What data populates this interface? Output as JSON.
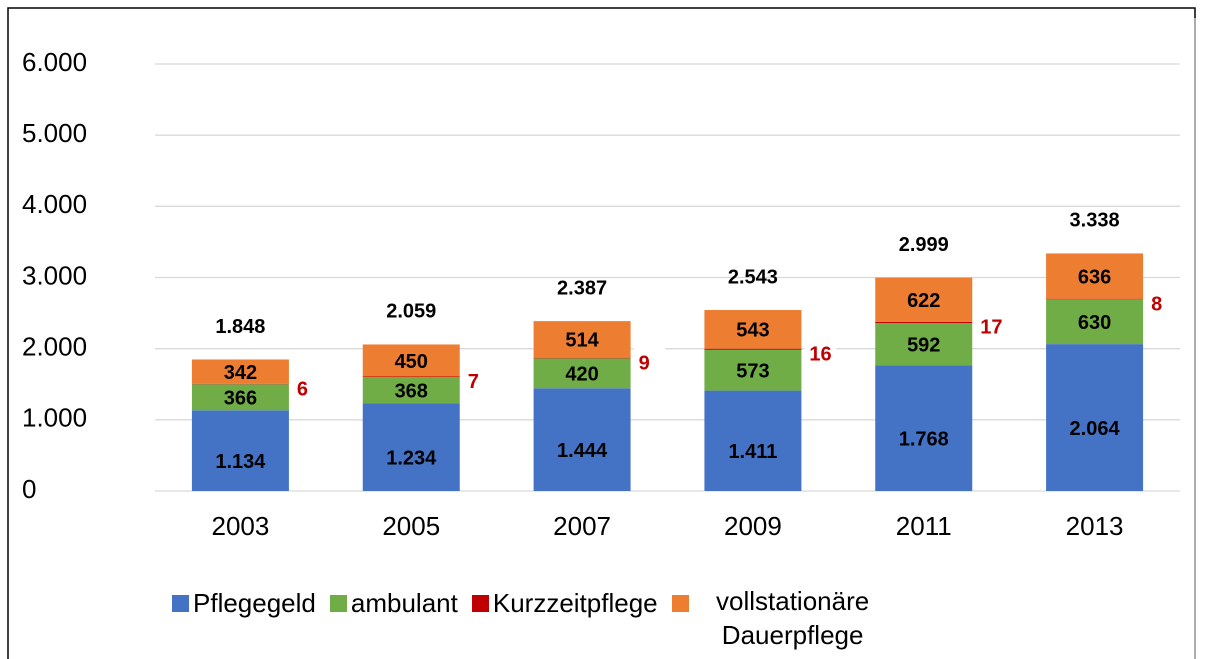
{
  "chart_data": {
    "type": "stacked_bar",
    "categories": [
      "2003",
      "2005",
      "2007",
      "2009",
      "2011",
      "2013"
    ],
    "series": [
      {
        "name": "Pflegegeld",
        "color": "#4472c4",
        "values": [
          1134,
          1234,
          1444,
          1411,
          1768,
          2064
        ],
        "value_labels": [
          "1.134",
          "1.234",
          "1.444",
          "1.411",
          "1.768",
          "2.064"
        ]
      },
      {
        "name": "ambulant",
        "color": "#70ad47",
        "values": [
          366,
          368,
          420,
          573,
          592,
          630
        ]
      },
      {
        "name": "Kurzzeitpflege",
        "color": "#c00000",
        "values": [
          6,
          7,
          9,
          16,
          17,
          8
        ]
      },
      {
        "name": "vollstationäre Dauerpflege",
        "color": "#ed7d31",
        "values": [
          342,
          450,
          514,
          543,
          622,
          636
        ]
      }
    ],
    "totals": {
      "values": [
        1848,
        2059,
        2387,
        2543,
        2999,
        3338
      ],
      "value_labels": [
        "1.848",
        "2.059",
        "2.387",
        "2.543",
        "2.999",
        "3.338"
      ]
    },
    "ylim": [
      0,
      6000
    ],
    "yticks": [
      0,
      {
        "value": 1000,
        "label": "1.000"
      },
      {
        "value": 2000,
        "label": "2.000"
      },
      {
        "value": 3000,
        "label": "3.000"
      },
      {
        "value": 4000,
        "label": "4.000"
      },
      {
        "value": 5000,
        "label": "5.000"
      },
      {
        "value": 6000,
        "label": "6.000"
      }
    ],
    "grid": true,
    "legend": "bottom"
  }
}
